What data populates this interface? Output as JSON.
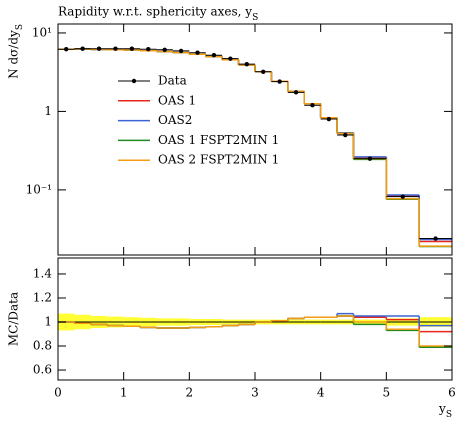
{
  "chart_data": [
    {
      "type": "histogram",
      "title": "Rapidity w.r.t. sphericity axes, y_S",
      "y_label": "N dσ/dy_S",
      "log_y": true,
      "legend": "upper left",
      "bins": [
        0,
        0.25,
        0.5,
        0.75,
        1,
        1.25,
        1.5,
        1.75,
        2,
        2.25,
        2.5,
        2.75,
        3,
        3.25,
        3.5,
        3.75,
        4,
        4.25,
        4.5,
        5,
        5.5,
        6
      ],
      "xlim": [
        0,
        6
      ],
      "ylim": [
        0.0148,
        13
      ],
      "yticks": [
        {
          "value": 0.1,
          "label": "10⁻¹"
        },
        1,
        {
          "value": 10,
          "label": "10¹"
        }
      ],
      "series": [
        {
          "name": "Data",
          "color": "#000000",
          "values": [
            6.2,
            6.3,
            6.3,
            6.3,
            6.3,
            6.2,
            6.1,
            5.9,
            5.6,
            5.2,
            4.7,
            4.0,
            3.2,
            2.4,
            1.75,
            1.2,
            0.8,
            0.5,
            0.25,
            0.082,
            0.024
          ]
        },
        {
          "name": "OAS 1",
          "color": "#e8261c",
          "values": [
            6.2,
            6.24,
            6.17,
            6.11,
            6.08,
            5.92,
            5.8,
            5.61,
            5.35,
            4.99,
            4.56,
            3.92,
            3.2,
            2.42,
            1.8,
            1.25,
            0.83,
            0.525,
            0.26,
            0.084,
            0.022
          ]
        },
        {
          "name": "OAS2",
          "color": "#3a63d4",
          "values": [
            6.2,
            6.24,
            6.17,
            6.11,
            6.08,
            5.92,
            5.8,
            5.61,
            5.35,
            4.99,
            4.56,
            3.92,
            3.2,
            2.42,
            1.8,
            1.25,
            0.83,
            0.535,
            0.263,
            0.086,
            0.0233
          ]
        },
        {
          "name": "OAS 1 FSPT2MIN 1",
          "color": "#1f8a1f",
          "values": [
            6.2,
            6.24,
            6.17,
            6.11,
            6.08,
            5.92,
            5.8,
            5.61,
            5.35,
            4.99,
            4.56,
            3.92,
            3.2,
            2.42,
            1.8,
            1.25,
            0.83,
            0.525,
            0.245,
            0.076,
            0.019
          ]
        },
        {
          "name": "OAS 2 FSPT2MIN 1",
          "color": "#f59b14",
          "values": [
            6.2,
            6.24,
            6.17,
            6.11,
            6.08,
            5.92,
            5.8,
            5.61,
            5.35,
            4.99,
            4.56,
            3.92,
            3.2,
            2.42,
            1.8,
            1.25,
            0.83,
            0.525,
            0.25,
            0.077,
            0.0192
          ]
        }
      ]
    },
    {
      "type": "histogram",
      "y_label": "MC/Data",
      "x_label": "y_S",
      "bins": [
        0,
        0.25,
        0.5,
        0.75,
        1,
        1.25,
        1.5,
        1.75,
        2,
        2.25,
        2.5,
        2.75,
        3,
        3.25,
        3.5,
        3.75,
        4,
        4.25,
        4.5,
        5,
        5.5,
        6
      ],
      "xlim": [
        0,
        6
      ],
      "xticks": [
        0,
        1,
        2,
        3,
        4,
        5,
        6
      ],
      "ylim": [
        0.517,
        1.533
      ],
      "yticks": [
        0.6,
        0.8,
        1,
        1.2,
        1.4
      ],
      "series": [
        {
          "color": "#000000",
          "error_color": "#ffff33",
          "values": [
            1,
            1,
            1,
            1,
            1,
            1,
            1,
            1,
            1,
            1,
            1,
            1,
            1,
            1,
            1,
            1,
            1,
            1,
            1,
            1,
            1
          ],
          "errors": [
            0.07,
            0.06,
            0.05,
            0.045,
            0.04,
            0.035,
            0.03,
            0.03,
            0.025,
            0.025,
            0.02,
            0.02,
            0.02,
            0.02,
            0.02,
            0.02,
            0.02,
            0.02,
            0.02,
            0.03,
            0.04
          ]
        },
        {
          "color": "#e8261c",
          "values": [
            1,
            0.99,
            0.98,
            0.97,
            0.965,
            0.955,
            0.95,
            0.95,
            0.955,
            0.96,
            0.97,
            0.98,
            1,
            1.01,
            1.03,
            1.04,
            1.04,
            1.05,
            1.04,
            1.02,
            0.92
          ]
        },
        {
          "color": "#3a63d4",
          "values": [
            1,
            0.99,
            0.98,
            0.97,
            0.965,
            0.955,
            0.95,
            0.95,
            0.955,
            0.96,
            0.97,
            0.98,
            1,
            1.01,
            1.03,
            1.04,
            1.04,
            1.07,
            1.05,
            1.05,
            0.97
          ]
        },
        {
          "color": "#1f8a1f",
          "values": [
            1,
            0.99,
            0.98,
            0.97,
            0.965,
            0.955,
            0.95,
            0.95,
            0.955,
            0.96,
            0.97,
            0.98,
            1,
            1.01,
            1.03,
            1.04,
            1.04,
            1.05,
            0.98,
            0.93,
            0.79
          ]
        },
        {
          "color": "#f59b14",
          "values": [
            1,
            0.99,
            0.98,
            0.97,
            0.965,
            0.955,
            0.95,
            0.95,
            0.955,
            0.96,
            0.97,
            0.98,
            1,
            1.01,
            1.03,
            1.04,
            1.04,
            1.05,
            1.0,
            0.94,
            0.8
          ]
        }
      ]
    }
  ]
}
